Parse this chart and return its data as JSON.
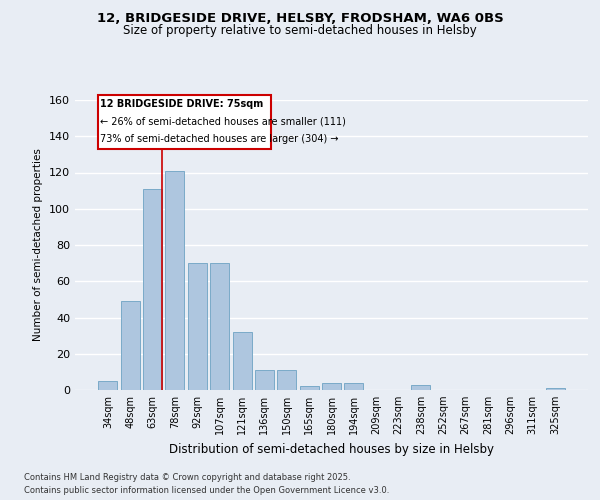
{
  "title1": "12, BRIDGESIDE DRIVE, HELSBY, FRODSHAM, WA6 0BS",
  "title2": "Size of property relative to semi-detached houses in Helsby",
  "xlabel": "Distribution of semi-detached houses by size in Helsby",
  "ylabel": "Number of semi-detached properties",
  "categories": [
    "34sqm",
    "48sqm",
    "63sqm",
    "78sqm",
    "92sqm",
    "107sqm",
    "121sqm",
    "136sqm",
    "150sqm",
    "165sqm",
    "180sqm",
    "194sqm",
    "209sqm",
    "223sqm",
    "238sqm",
    "252sqm",
    "267sqm",
    "281sqm",
    "296sqm",
    "311sqm",
    "325sqm"
  ],
  "values": [
    5,
    49,
    111,
    121,
    70,
    70,
    32,
    11,
    11,
    2,
    4,
    4,
    0,
    0,
    3,
    0,
    0,
    0,
    0,
    0,
    1
  ],
  "bar_color": "#aec6df",
  "bar_edge_color": "#7aaac8",
  "background_color": "#e8edf4",
  "grid_color": "#ffffff",
  "annotation_text1": "12 BRIDGESIDE DRIVE: 75sqm",
  "annotation_text2": "← 26% of semi-detached houses are smaller (111)",
  "annotation_text3": "73% of semi-detached houses are larger (304) →",
  "box_color": "#cc0000",
  "line_color": "#cc0000",
  "ylim": [
    0,
    160
  ],
  "yticks": [
    0,
    20,
    40,
    60,
    80,
    100,
    120,
    140,
    160
  ],
  "footer1": "Contains HM Land Registry data © Crown copyright and database right 2025.",
  "footer2": "Contains public sector information licensed under the Open Government Licence v3.0."
}
